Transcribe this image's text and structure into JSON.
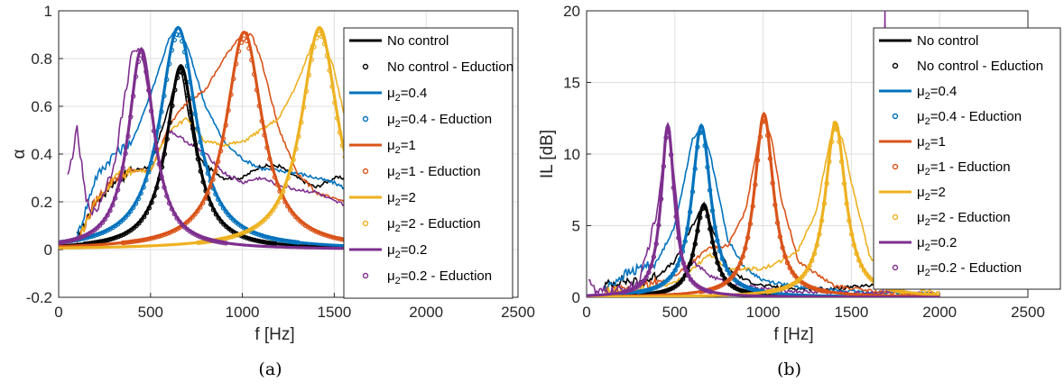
{
  "chart_data": [
    {
      "type": "line",
      "panel": "(a)",
      "caption": "(a)",
      "xlabel": "f [Hz]",
      "ylabel": "α",
      "xlim": [
        0,
        2500
      ],
      "ylim": [
        -0.2,
        1
      ],
      "x_ticks": [
        "0",
        "500",
        "1000",
        "1500",
        "2000",
        "2500"
      ],
      "y_ticks": [
        "-0.2",
        "0",
        "0.2",
        "0.4",
        "0.6",
        "0.8",
        "1"
      ],
      "grid": true,
      "legend_position": "top-right",
      "legend": [
        {
          "base": "No control",
          "sub": "",
          "tail": "",
          "style": "line",
          "color": "#000000"
        },
        {
          "base": "No control - Eduction",
          "sub": "",
          "tail": "",
          "style": "circle",
          "color": "#000000"
        },
        {
          "base": "μ",
          "sub": "2",
          "tail": "=0.4",
          "style": "line",
          "color": "#0072BD"
        },
        {
          "base": "μ",
          "sub": "2",
          "tail": "=0.4 - Eduction",
          "style": "circle",
          "color": "#0072BD"
        },
        {
          "base": "μ",
          "sub": "2",
          "tail": "=1",
          "style": "line",
          "color": "#D95319"
        },
        {
          "base": "μ",
          "sub": "2",
          "tail": "=1 - Eduction",
          "style": "circle",
          "color": "#D95319"
        },
        {
          "base": "μ",
          "sub": "2",
          "tail": "=2",
          "style": "line",
          "color": "#EDB120"
        },
        {
          "base": "μ",
          "sub": "2",
          "tail": "=2 - Eduction",
          "style": "circle",
          "color": "#EDB120"
        },
        {
          "base": "μ",
          "sub": "2",
          "tail": "=0.2",
          "style": "line",
          "color": "#7E2F8E"
        },
        {
          "base": "μ",
          "sub": "2",
          "tail": "=0.2 - Eduction",
          "style": "circle",
          "color": "#7E2F8E"
        }
      ],
      "series": [
        {
          "key": "No control",
          "color": "#000000",
          "peak_f": 665,
          "peak_val": 0.77,
          "width": 95,
          "base": 0.0
        },
        {
          "key": "μ2=0.4",
          "color": "#0072BD",
          "peak_f": 650,
          "peak_val": 0.93,
          "width": 120,
          "base": 0.0
        },
        {
          "key": "μ2=1",
          "color": "#D95319",
          "peak_f": 1010,
          "peak_val": 0.91,
          "width": 120,
          "base": 0.0
        },
        {
          "key": "μ2=2",
          "color": "#EDB120",
          "peak_f": 1420,
          "peak_val": 0.93,
          "width": 120,
          "base": 0.0
        },
        {
          "key": "μ2=0.2",
          "color": "#7E2F8E",
          "peak_f": 450,
          "peak_val": 0.84,
          "width": 85,
          "base": 0.0
        }
      ],
      "measured_curves": [
        {
          "key": "No control",
          "color": "#000000",
          "points": [
            [
              100,
              0.05
            ],
            [
              200,
              0.2
            ],
            [
              300,
              0.28
            ],
            [
              400,
              0.33
            ],
            [
              500,
              0.35
            ],
            [
              600,
              0.6
            ],
            [
              665,
              0.77
            ],
            [
              700,
              0.6
            ],
            [
              750,
              0.4
            ],
            [
              800,
              0.35
            ],
            [
              900,
              0.3
            ],
            [
              1000,
              0.3
            ],
            [
              1100,
              0.35
            ],
            [
              1200,
              0.35
            ],
            [
              1300,
              0.3
            ],
            [
              1400,
              0.26
            ],
            [
              1500,
              0.3
            ],
            [
              1600,
              0.3
            ],
            [
              1700,
              0.33
            ]
          ]
        },
        {
          "key": "μ2=0.4",
          "color": "#0072BD",
          "points": [
            [
              100,
              0.05
            ],
            [
              200,
              0.3
            ],
            [
              300,
              0.4
            ],
            [
              400,
              0.45
            ],
            [
              500,
              0.65
            ],
            [
              600,
              0.88
            ],
            [
              650,
              0.93
            ],
            [
              700,
              0.85
            ],
            [
              800,
              0.6
            ],
            [
              900,
              0.45
            ],
            [
              1000,
              0.38
            ],
            [
              1100,
              0.34
            ],
            [
              1200,
              0.33
            ],
            [
              1300,
              0.32
            ],
            [
              1400,
              0.3
            ],
            [
              1500,
              0.28
            ],
            [
              1600,
              0.24
            ],
            [
              1700,
              0.22
            ]
          ]
        },
        {
          "key": "μ2=1",
          "color": "#D95319",
          "points": [
            [
              100,
              0.03
            ],
            [
              200,
              0.2
            ],
            [
              300,
              0.3
            ],
            [
              400,
              0.33
            ],
            [
              500,
              0.33
            ],
            [
              600,
              0.52
            ],
            [
              700,
              0.62
            ],
            [
              800,
              0.67
            ],
            [
              900,
              0.8
            ],
            [
              1000,
              0.91
            ],
            [
              1050,
              0.9
            ],
            [
              1100,
              0.8
            ],
            [
              1200,
              0.5
            ],
            [
              1300,
              0.32
            ],
            [
              1400,
              0.24
            ],
            [
              1500,
              0.21
            ],
            [
              1600,
              0.2
            ],
            [
              1700,
              0.2
            ]
          ]
        },
        {
          "key": "μ2=2",
          "color": "#EDB120",
          "points": [
            [
              100,
              0.03
            ],
            [
              200,
              0.2
            ],
            [
              300,
              0.3
            ],
            [
              400,
              0.33
            ],
            [
              500,
              0.33
            ],
            [
              600,
              0.5
            ],
            [
              700,
              0.55
            ],
            [
              800,
              0.45
            ],
            [
              900,
              0.44
            ],
            [
              1000,
              0.45
            ],
            [
              1100,
              0.5
            ],
            [
              1200,
              0.55
            ],
            [
              1300,
              0.7
            ],
            [
              1400,
              0.9
            ],
            [
              1420,
              0.93
            ],
            [
              1500,
              0.75
            ],
            [
              1600,
              0.4
            ],
            [
              1700,
              0.25
            ]
          ]
        },
        {
          "key": "μ2=0.2",
          "color": "#7E2F8E",
          "points": [
            [
              50,
              0.3
            ],
            [
              100,
              0.5
            ],
            [
              150,
              0.2
            ],
            [
              200,
              0.15
            ],
            [
              300,
              0.35
            ],
            [
              400,
              0.83
            ],
            [
              450,
              0.84
            ],
            [
              500,
              0.6
            ],
            [
              550,
              0.35
            ],
            [
              600,
              0.5
            ],
            [
              700,
              0.45
            ],
            [
              800,
              0.4
            ],
            [
              900,
              0.32
            ],
            [
              1000,
              0.28
            ],
            [
              1100,
              0.3
            ],
            [
              1200,
              0.27
            ],
            [
              1300,
              0.25
            ],
            [
              1400,
              0.24
            ],
            [
              1500,
              0.2
            ],
            [
              1600,
              0.18
            ],
            [
              1700,
              0.12
            ]
          ]
        }
      ]
    },
    {
      "type": "line",
      "panel": "(b)",
      "caption": "(b)",
      "xlabel": "f [Hz]",
      "ylabel": "IL [dB]",
      "xlim": [
        0,
        2500
      ],
      "ylim": [
        0,
        20
      ],
      "x_ticks": [
        "0",
        "500",
        "1000",
        "1500",
        "2000",
        "2500"
      ],
      "y_ticks": [
        "0",
        "5",
        "10",
        "15",
        "20"
      ],
      "grid": true,
      "legend_position": "top-right",
      "legend": [
        {
          "base": "No control",
          "sub": "",
          "tail": "",
          "style": "line",
          "color": "#000000"
        },
        {
          "base": "No control - Eduction",
          "sub": "",
          "tail": "",
          "style": "circle",
          "color": "#000000"
        },
        {
          "base": "μ",
          "sub": "2",
          "tail": "=0.4",
          "style": "line",
          "color": "#0072BD"
        },
        {
          "base": "μ",
          "sub": "2",
          "tail": "=0.4 - Eduction",
          "style": "circle",
          "color": "#0072BD"
        },
        {
          "base": "μ",
          "sub": "2",
          "tail": "=1",
          "style": "line",
          "color": "#D95319"
        },
        {
          "base": "μ",
          "sub": "2",
          "tail": "=1 - Eduction",
          "style": "circle",
          "color": "#D95319"
        },
        {
          "base": "μ",
          "sub": "2",
          "tail": "=2",
          "style": "line",
          "color": "#EDB120"
        },
        {
          "base": "μ",
          "sub": "2",
          "tail": "=2 - Eduction",
          "style": "circle",
          "color": "#EDB120"
        },
        {
          "base": "μ",
          "sub": "2",
          "tail": "=0.2",
          "style": "line",
          "color": "#7E2F8E"
        },
        {
          "base": "μ",
          "sub": "2",
          "tail": "=0.2 - Eduction",
          "style": "circle",
          "color": "#7E2F8E"
        }
      ],
      "series": [
        {
          "key": "No control",
          "color": "#000000",
          "peak_f": 665,
          "peak_val": 6.5,
          "width": 60,
          "base": 0.0
        },
        {
          "key": "μ2=0.4",
          "color": "#0072BD",
          "peak_f": 650,
          "peak_val": 12.0,
          "width": 65,
          "base": 0.0
        },
        {
          "key": "μ2=1",
          "color": "#D95319",
          "peak_f": 1005,
          "peak_val": 12.8,
          "width": 65,
          "base": 0.0
        },
        {
          "key": "μ2=2",
          "color": "#EDB120",
          "peak_f": 1410,
          "peak_val": 12.2,
          "width": 70,
          "base": 0.0
        },
        {
          "key": "μ2=0.2",
          "color": "#7E2F8E",
          "peak_f": 460,
          "peak_val": 12.0,
          "width": 45,
          "base": 0.0
        }
      ],
      "measured_curves": [
        {
          "key": "No control",
          "color": "#000000",
          "points": [
            [
              100,
              0.8
            ],
            [
              200,
              1.2
            ],
            [
              300,
              1.0
            ],
            [
              400,
              1.5
            ],
            [
              500,
              2.5
            ],
            [
              600,
              5.0
            ],
            [
              665,
              6.5
            ],
            [
              720,
              4.5
            ],
            [
              800,
              2.0
            ],
            [
              900,
              1.2
            ],
            [
              1000,
              0.8
            ],
            [
              1200,
              0.6
            ],
            [
              1400,
              0.6
            ],
            [
              1600,
              0.8
            ],
            [
              1700,
              1.3
            ]
          ]
        },
        {
          "key": "μ2=0.4",
          "color": "#0072BD",
          "points": [
            [
              100,
              0.5
            ],
            [
              200,
              1.5
            ],
            [
              300,
              2.0
            ],
            [
              400,
              2.5
            ],
            [
              500,
              5.0
            ],
            [
              600,
              11.0
            ],
            [
              650,
              12.0
            ],
            [
              700,
              10.0
            ],
            [
              800,
              4.0
            ],
            [
              900,
              2.0
            ],
            [
              1000,
              1.2
            ],
            [
              1200,
              0.7
            ],
            [
              1500,
              0.4
            ],
            [
              2000,
              0.2
            ]
          ]
        },
        {
          "key": "μ2=1",
          "color": "#D95319",
          "points": [
            [
              100,
              0.3
            ],
            [
              300,
              0.6
            ],
            [
              500,
              1.5
            ],
            [
              600,
              2.5
            ],
            [
              700,
              3.5
            ],
            [
              800,
              3.6
            ],
            [
              900,
              6.0
            ],
            [
              1000,
              12.8
            ],
            [
              1050,
              11.0
            ],
            [
              1100,
              7.0
            ],
            [
              1200,
              2.5
            ],
            [
              1400,
              0.8
            ],
            [
              1700,
              0.3
            ],
            [
              2000,
              0.2
            ]
          ]
        },
        {
          "key": "μ2=2",
          "color": "#EDB120",
          "points": [
            [
              100,
              0.3
            ],
            [
              300,
              0.5
            ],
            [
              500,
              1.0
            ],
            [
              600,
              2.0
            ],
            [
              700,
              3.0
            ],
            [
              800,
              2.0
            ],
            [
              1000,
              2.0
            ],
            [
              1100,
              2.5
            ],
            [
              1200,
              3.3
            ],
            [
              1300,
              6.0
            ],
            [
              1400,
              12.2
            ],
            [
              1450,
              11.0
            ],
            [
              1500,
              8.0
            ],
            [
              1600,
              3.0
            ],
            [
              1700,
              1.0
            ],
            [
              2000,
              0.3
            ]
          ]
        },
        {
          "key": "μ2=0.2",
          "color": "#7E2F8E",
          "points": [
            [
              10,
              1.5
            ],
            [
              50,
              0.3
            ],
            [
              200,
              0.5
            ],
            [
              300,
              1.0
            ],
            [
              400,
              6.0
            ],
            [
              460,
              12.0
            ],
            [
              500,
              8.0
            ],
            [
              550,
              2.0
            ],
            [
              600,
              2.5
            ],
            [
              700,
              1.5
            ],
            [
              800,
              1.0
            ],
            [
              1000,
              0.6
            ],
            [
              1200,
              0.4
            ],
            [
              1500,
              0.3
            ],
            [
              1680,
              0.3
            ],
            [
              1690,
              20.0
            ],
            [
              1700,
              0.4
            ],
            [
              2000,
              0.2
            ]
          ]
        }
      ]
    }
  ]
}
